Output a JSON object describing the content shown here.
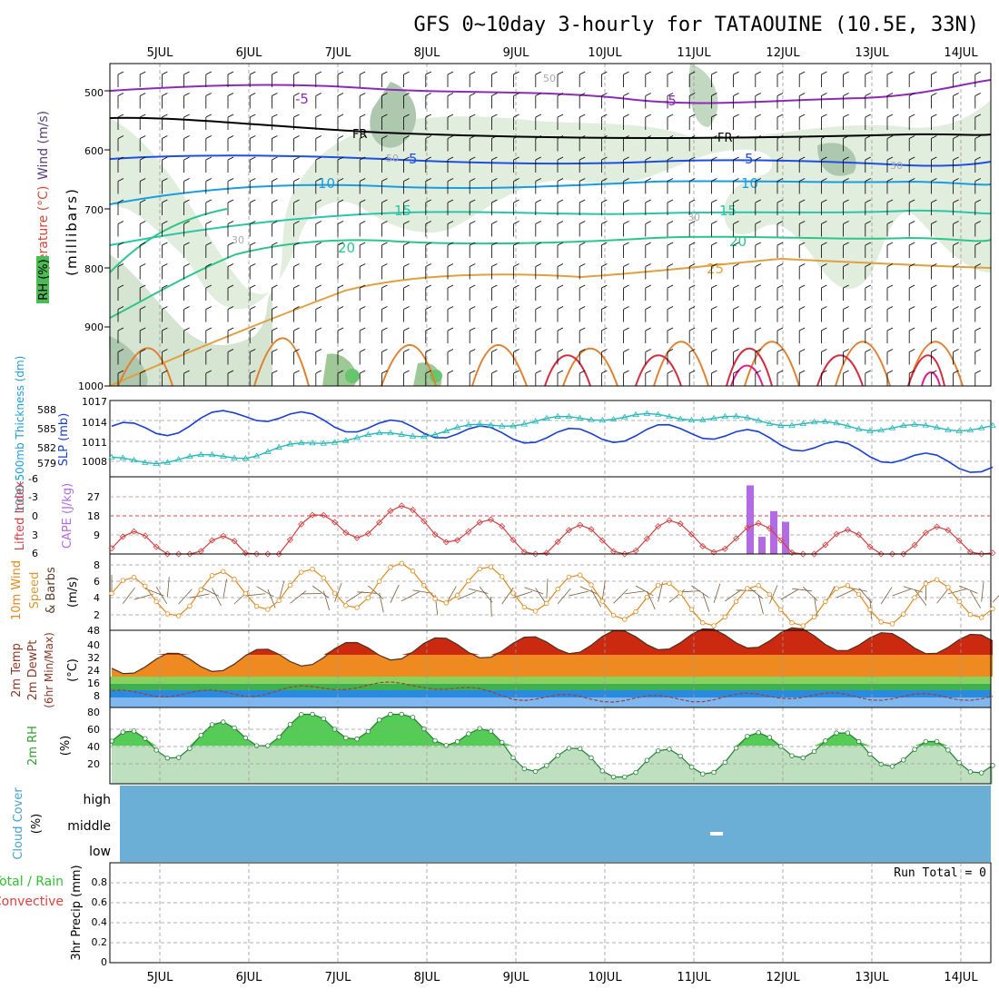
{
  "title": "GFS 0~10day 3-hourly for TATAOUINE (10.5E, 33N)",
  "dates": [
    "5JUL",
    "6JUL",
    "7JUL",
    "8JUL",
    "9JUL",
    "10JUL",
    "11JUL",
    "12JUL",
    "13JUL",
    "14JUL"
  ],
  "colors": {
    "rh_green": "#4dbb55",
    "wind_text": "#5a3d7a",
    "temp_red": "#d24a3a",
    "mb_text": "#000000",
    "cape_purple": "#b36ae2",
    "li_red": "#d04040",
    "slp_blue": "#1a3fd0",
    "thick_cyan": "#24b8b8",
    "wind_orange": "#e08a20",
    "wind_speed_tan": "#d39a3a",
    "precip_green": "#30c030",
    "precip_red": "#e04040",
    "cloud_blue": "#6baed6"
  },
  "upper_panel": {
    "label_rh": "RH (%)",
    "label_temp": "Temperature (°C)",
    "label_wind": "Wind (m/s)",
    "label_mb": "(millibars)",
    "ticks": [
      "500",
      "600",
      "700",
      "800",
      "900",
      "1000"
    ],
    "contour_labels": [
      "-5",
      "FR",
      "FR",
      "-5",
      "5",
      "5",
      "10",
      "10",
      "15",
      "15",
      "20",
      "20",
      "25",
      "30",
      "30",
      "50",
      "50",
      "30"
    ]
  },
  "slp_panel": {
    "label_thick": "1000-500mb Thickness (dm)",
    "label_slp": "SLP (mb)",
    "left_ticks": [
      "588",
      "585",
      "582",
      "579"
    ],
    "right_ticks": [
      "1017",
      "1014",
      "1011",
      "1008"
    ]
  },
  "cape_panel": {
    "label_li": "Lifted Index",
    "label_cape": "CAPE (J/kg)",
    "left_ticks": [
      "-6",
      "-3",
      "0",
      "3",
      "6"
    ],
    "right_ticks": [
      "27",
      "18",
      "9"
    ]
  },
  "wind_panel": {
    "label_10m": "10m Wind",
    "label_speed": "Speed",
    "label_barbs": "& Barbs",
    "label_unit": "(m/s)",
    "ticks": [
      "8",
      "6",
      "4",
      "2"
    ]
  },
  "temp_panel": {
    "label_a": "2m Temp",
    "label_b": "2m DewPt",
    "label_c": "(6hr Min/Max)",
    "label_unit": "(°C)",
    "ticks": [
      "48",
      "40",
      "32",
      "24",
      "16",
      "8"
    ]
  },
  "rh_panel": {
    "label": "2m RH",
    "unit": "(%)",
    "ticks": [
      "80",
      "60",
      "40",
      "20"
    ]
  },
  "cloud_panel": {
    "label": "Cloud Cover",
    "unit": "(%)",
    "levels": [
      "high",
      "middle",
      "low"
    ]
  },
  "precip_panel": {
    "label_total": "Total / Rain",
    "label_conv": "Convective",
    "label_main": "3hr Precip (mm)",
    "ticks": [
      "0.8",
      "0.6",
      "0.4",
      "0.2",
      "0"
    ],
    "run_total": "Run Total = 0"
  },
  "chart_data": {
    "type": "line",
    "x": [
      "5JUL",
      "6JUL",
      "7JUL",
      "8JUL",
      "9JUL",
      "10JUL",
      "11JUL",
      "12JUL",
      "13JUL",
      "14JUL"
    ],
    "series": [
      {
        "name": "SLP (mb)",
        "values": [
          1013,
          1016,
          1014,
          1013,
          1012,
          1012,
          1013,
          1011,
          1009,
          1007
        ]
      },
      {
        "name": "1000-500mb Thickness (dm)",
        "values": [
          579,
          580,
          583,
          584,
          586,
          587,
          587,
          586,
          585,
          585
        ]
      },
      {
        "name": "Lifted Index",
        "values": [
          5,
          6,
          1,
          1,
          4,
          4,
          3,
          4,
          5,
          4
        ]
      },
      {
        "name": "10m Wind Speed",
        "values": [
          4,
          5,
          5,
          6,
          5,
          4,
          3,
          3,
          3,
          4
        ]
      },
      {
        "name": "2m Temp",
        "values": [
          29,
          31,
          35,
          38,
          38,
          42,
          43,
          44,
          41,
          40
        ]
      },
      {
        "name": "2m DewPt",
        "values": [
          12,
          12,
          16,
          17,
          10,
          9,
          9,
          11,
          10,
          10
        ]
      },
      {
        "name": "2m RH",
        "values": [
          45,
          60,
          70,
          70,
          35,
          20,
          25,
          50,
          40,
          30
        ]
      }
    ],
    "cape_bars": [
      {
        "x": "11JUL",
        "values": [
          32,
          8,
          20,
          15
        ]
      }
    ],
    "ylim_slp": [
      1005,
      1017
    ],
    "ylim_temp": [
      0,
      48
    ],
    "ylim_rh": [
      0,
      90
    ],
    "ylim_wind": [
      0,
      9
    ]
  }
}
